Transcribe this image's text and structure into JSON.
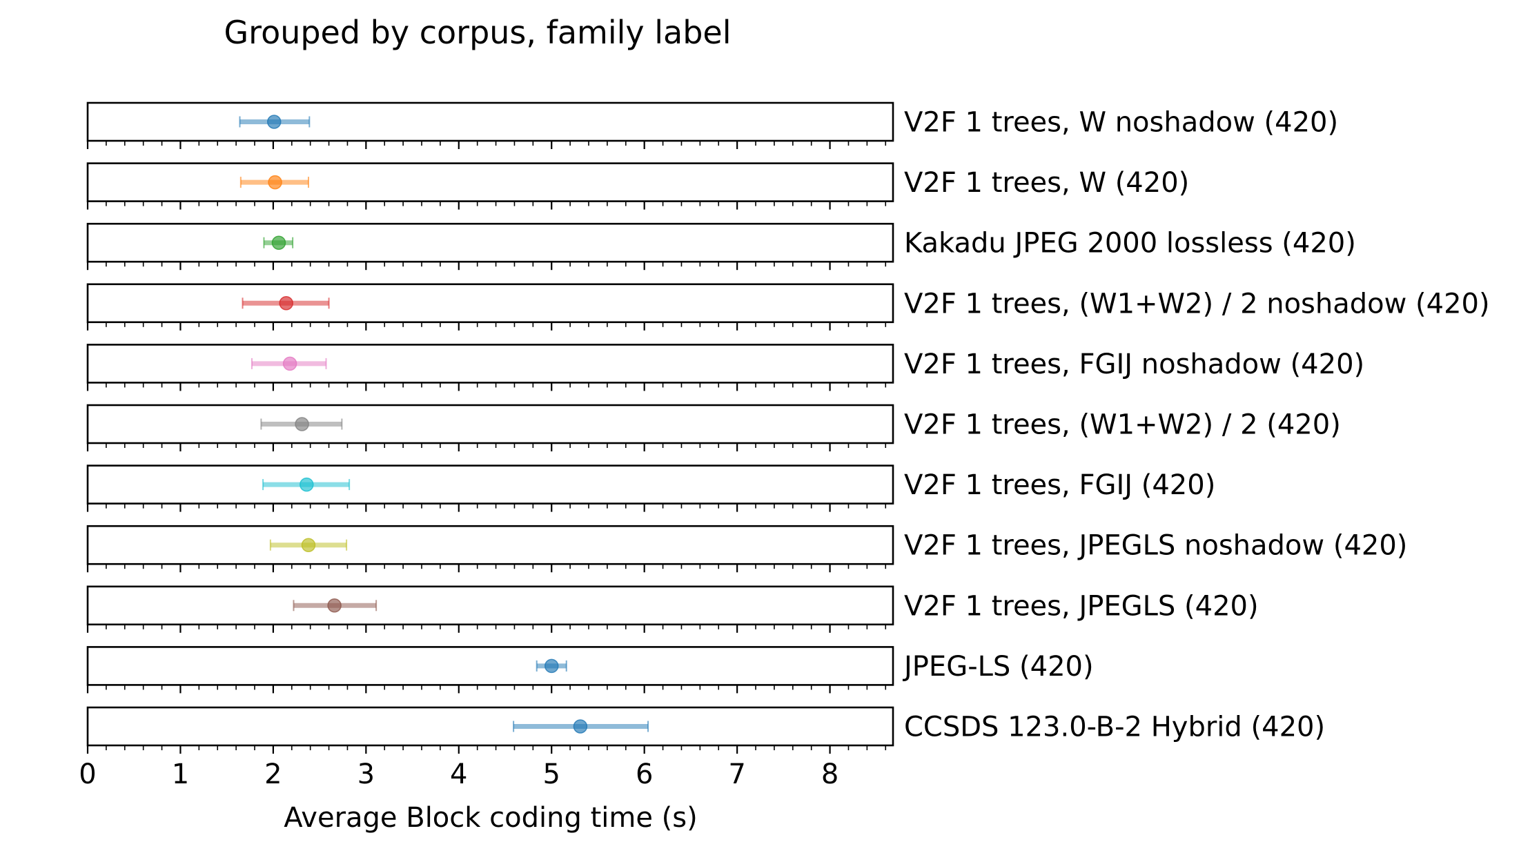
{
  "chart_data": {
    "type": "scatter",
    "title": "Grouped by corpus, family label",
    "xlabel": "Average Block coding time (s)",
    "ylabel": "",
    "xlim": [
      0,
      8.68
    ],
    "x_ticks": [
      0,
      1,
      2,
      3,
      4,
      5,
      6,
      7,
      8
    ],
    "x_tick_labels": [
      "0",
      "1",
      "2",
      "3",
      "4",
      "5",
      "6",
      "7",
      "8"
    ],
    "minor_tick_step": 0.2,
    "grid": false,
    "legend": "none",
    "rows": [
      {
        "label": "V2F 1 trees, W noshadow (420)",
        "value": 2.01,
        "low": 1.64,
        "high": 2.39,
        "color": "#1f77b4"
      },
      {
        "label": "V2F 1 trees, W (420)",
        "value": 2.02,
        "low": 1.65,
        "high": 2.38,
        "color": "#ff7f0e"
      },
      {
        "label": "Kakadu JPEG 2000 lossless (420)",
        "value": 2.06,
        "low": 1.9,
        "high": 2.21,
        "color": "#2ca02c"
      },
      {
        "label": "V2F 1 trees, (W1+W2) / 2 noshadow (420)",
        "value": 2.14,
        "low": 1.67,
        "high": 2.6,
        "color": "#d62728"
      },
      {
        "label": "V2F 1 trees, FGIJ noshadow (420)",
        "value": 2.18,
        "low": 1.77,
        "high": 2.57,
        "color": "#e377c2"
      },
      {
        "label": "V2F 1 trees, (W1+W2) / 2 (420)",
        "value": 2.31,
        "low": 1.87,
        "high": 2.74,
        "color": "#7f7f7f"
      },
      {
        "label": "V2F 1 trees, FGIJ (420)",
        "value": 2.36,
        "low": 1.89,
        "high": 2.82,
        "color": "#17becf"
      },
      {
        "label": "V2F 1 trees, JPEGLS noshadow (420)",
        "value": 2.38,
        "low": 1.97,
        "high": 2.79,
        "color": "#bcbd22"
      },
      {
        "label": "V2F 1 trees, JPEGLS (420)",
        "value": 2.66,
        "low": 2.22,
        "high": 3.11,
        "color": "#8c564b"
      },
      {
        "label": "JPEG-LS (420)",
        "value": 5.0,
        "low": 4.84,
        "high": 5.16,
        "color": "#1f77b4"
      },
      {
        "label": "CCSDS 123.0-B-2 Hybrid (420)",
        "value": 5.31,
        "low": 4.59,
        "high": 6.04,
        "color": "#1f77b4"
      }
    ]
  }
}
